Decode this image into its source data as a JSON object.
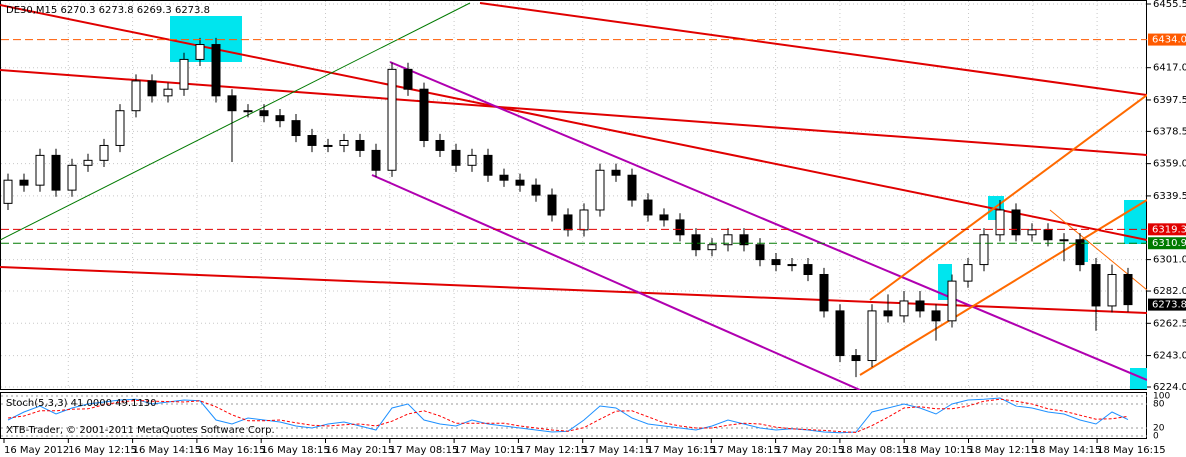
{
  "chart_data": {
    "type": "candlestick",
    "title": "DE30,M15  6270.3 6273.8 6269.3 6273.8",
    "footer": "XTB-Trader, © 2001-2011 MetaQuotes Software Corp.",
    "x_labels": [
      "16 May 2012",
      "16 May 12:15",
      "16 May 14:15",
      "16 May 16:15",
      "16 May 18:15",
      "16 May 20:15",
      "17 May 08:15",
      "17 May 10:15",
      "17 May 12:15",
      "17 May 14:15",
      "17 May 16:15",
      "17 May 18:15",
      "17 May 20:15",
      "18 May 08:15",
      "18 May 10:15",
      "18 May 12:15",
      "18 May 14:15",
      "18 May 16:15"
    ],
    "up_color": "#ffffff",
    "down_color": "#000000",
    "candles": [
      [
        6335,
        6353,
        6331,
        6349
      ],
      [
        6349,
        6353,
        6342,
        6346
      ],
      [
        6346,
        6368,
        6342,
        6364
      ],
      [
        6364,
        6368,
        6339,
        6343
      ],
      [
        6343,
        6362,
        6339,
        6358
      ],
      [
        6358,
        6365,
        6354,
        6361
      ],
      [
        6361,
        6374,
        6357,
        6370
      ],
      [
        6370,
        6395,
        6366,
        6391
      ],
      [
        6391,
        6413,
        6387,
        6409
      ],
      [
        6409,
        6413,
        6396,
        6400
      ],
      [
        6400,
        6408,
        6396,
        6404
      ],
      [
        6404,
        6426,
        6400,
        6422
      ],
      [
        6422,
        6435,
        6418,
        6431
      ],
      [
        6431,
        6435,
        6396,
        6400
      ],
      [
        6400,
        6404,
        6360,
        6391
      ],
      [
        6391,
        6395,
        6387,
        6391
      ],
      [
        6391,
        6395,
        6384,
        6388
      ],
      [
        6388,
        6392,
        6381,
        6385
      ],
      [
        6385,
        6389,
        6372,
        6376
      ],
      [
        6376,
        6380,
        6366,
        6370
      ],
      [
        6370,
        6374,
        6366,
        6370
      ],
      [
        6370,
        6377,
        6366,
        6373
      ],
      [
        6373,
        6377,
        6363,
        6367
      ],
      [
        6367,
        6371,
        6351,
        6355
      ],
      [
        6355,
        6420,
        6351,
        6416
      ],
      [
        6416,
        6420,
        6400,
        6404
      ],
      [
        6404,
        6408,
        6369,
        6373
      ],
      [
        6373,
        6377,
        6363,
        6367
      ],
      [
        6367,
        6371,
        6354,
        6358
      ],
      [
        6358,
        6368,
        6354,
        6364
      ],
      [
        6364,
        6368,
        6348,
        6352
      ],
      [
        6352,
        6356,
        6345,
        6349
      ],
      [
        6349,
        6353,
        6342,
        6346
      ],
      [
        6346,
        6350,
        6336,
        6340
      ],
      [
        6340,
        6344,
        6324,
        6328
      ],
      [
        6328,
        6332,
        6315,
        6319
      ],
      [
        6319,
        6335,
        6315,
        6331
      ],
      [
        6331,
        6359,
        6327,
        6355
      ],
      [
        6355,
        6359,
        6348,
        6352
      ],
      [
        6352,
        6356,
        6333,
        6337
      ],
      [
        6337,
        6341,
        6324,
        6328
      ],
      [
        6328,
        6332,
        6321,
        6325
      ],
      [
        6325,
        6329,
        6312,
        6316
      ],
      [
        6316,
        6320,
        6303,
        6307
      ],
      [
        6307,
        6314,
        6303,
        6310
      ],
      [
        6310,
        6320,
        6306,
        6316
      ],
      [
        6316,
        6320,
        6306,
        6310
      ],
      [
        6310,
        6314,
        6297,
        6301
      ],
      [
        6301,
        6305,
        6294,
        6298
      ],
      [
        6298,
        6302,
        6294,
        6298
      ],
      [
        6298,
        6302,
        6288,
        6292
      ],
      [
        6292,
        6296,
        6266,
        6270
      ],
      [
        6270,
        6274,
        6239,
        6243
      ],
      [
        6243,
        6247,
        6230,
        6240
      ],
      [
        6240,
        6274,
        6236,
        6270
      ],
      [
        6270,
        6280,
        6263,
        6267
      ],
      [
        6267,
        6282,
        6263,
        6276
      ],
      [
        6276,
        6282,
        6266,
        6270
      ],
      [
        6270,
        6274,
        6252,
        6264
      ],
      [
        6264,
        6292,
        6260,
        6288
      ],
      [
        6288,
        6302,
        6284,
        6298
      ],
      [
        6298,
        6320,
        6294,
        6316
      ],
      [
        6316,
        6337,
        6312,
        6331
      ],
      [
        6331,
        6335,
        6312,
        6316
      ],
      [
        6316,
        6323,
        6312,
        6319
      ],
      [
        6319,
        6323,
        6309,
        6313
      ],
      [
        6313,
        6317,
        6300,
        6313
      ],
      [
        6313,
        6317,
        6294,
        6298
      ],
      [
        6298,
        6302,
        6258,
        6273
      ],
      [
        6273,
        6298,
        6269,
        6292
      ],
      [
        6292,
        6296,
        6269.3,
        6273.8
      ]
    ],
    "ylim": [
      6224.0,
      6455.5
    ],
    "yticks": [
      6455.5,
      {
        "value": 6417.0,
        "label": "6417.0"
      },
      6397.5,
      6378.5,
      {
        "value": 6359.0,
        "label": "6359.0"
      },
      6339.5,
      {
        "value": 6301.0,
        "label": "6301.0"
      },
      {
        "value": 6282.0,
        "label": "6282.0"
      },
      6262.5,
      {
        "value": 6243.0,
        "label": "6243.0"
      },
      {
        "value": 6224.0,
        "label": "6224.0"
      }
    ],
    "grid": true,
    "levels": [
      {
        "value": 6434.0,
        "label": "6434.0",
        "color": "#ff5a00"
      },
      {
        "value": 6319.3,
        "color": "#e00000"
      },
      {
        "value": 6310.9,
        "color": "#007a00"
      }
    ],
    "last_price": 6273.8,
    "stochastic": {
      "title": "Stoch(5,3,3) 41.0000 49.1130",
      "ylim": [
        0,
        100
      ],
      "yticks": [
        0,
        20,
        80,
        100
      ],
      "series": [
        {
          "color": "#1e90ff",
          "values": [
            40,
            60,
            75,
            55,
            70,
            80,
            85,
            90,
            92,
            80,
            85,
            90,
            88,
            40,
            30,
            45,
            40,
            35,
            25,
            20,
            30,
            35,
            25,
            15,
            70,
            80,
            40,
            30,
            25,
            40,
            30,
            25,
            20,
            15,
            10,
            12,
            40,
            75,
            70,
            45,
            30,
            25,
            20,
            15,
            25,
            40,
            30,
            20,
            15,
            18,
            15,
            10,
            8,
            10,
            60,
            70,
            80,
            70,
            55,
            80,
            90,
            92,
            95,
            75,
            70,
            60,
            55,
            40,
            30,
            60,
            41
          ]
        },
        {
          "color": "#ff0000",
          "values": [
            45,
            50,
            63,
            63,
            67,
            68,
            78,
            85,
            89,
            87,
            86,
            85,
            88,
            73,
            53,
            38,
            38,
            40,
            33,
            27,
            25,
            28,
            30,
            25,
            37,
            55,
            63,
            50,
            32,
            32,
            32,
            32,
            25,
            20,
            15,
            12,
            21,
            42,
            62,
            63,
            48,
            33,
            25,
            20,
            20,
            27,
            32,
            30,
            22,
            18,
            16,
            14,
            11,
            9,
            26,
            47,
            70,
            73,
            68,
            68,
            75,
            87,
            92,
            87,
            80,
            68,
            62,
            52,
            42,
            43,
            49.113
          ]
        }
      ]
    }
  }
}
